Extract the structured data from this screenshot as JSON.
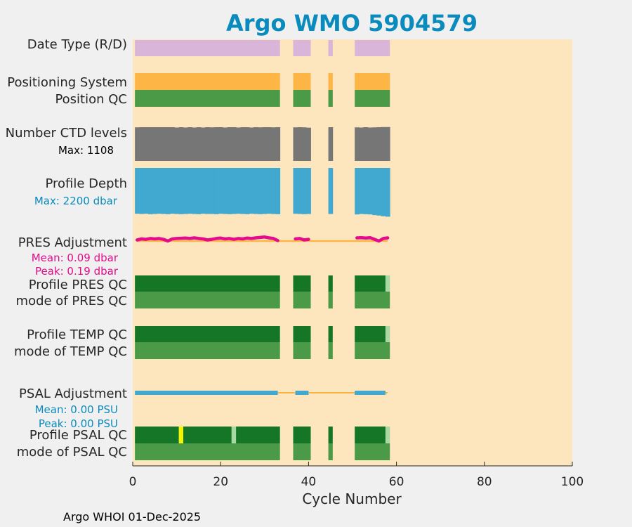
{
  "colors": {
    "page_bg": "#f0f0f0",
    "plot_bg": "#fde6bd",
    "title": "#0a8bbd",
    "date_type": "#d9b6d9",
    "positioning": "#fdb546",
    "qc_good": "#4a9a47",
    "qc_dark": "#167628",
    "qc_light": "#a8d9a2",
    "qc_yellow": "#f5f500",
    "ctd": "#767676",
    "depth": "#41a9d0",
    "pres_adj": "#e40c8c",
    "psal_adj": "#41a9d0",
    "baseline": "#fdb546",
    "ctd_label": "#000000",
    "depth_label": "#0a8bbd",
    "pres_label": "#e40c8c",
    "psal_label": "#0a8bbd"
  },
  "chart_data": {
    "type": "bar",
    "title": "Argo WMO 5904579",
    "xlabel": "Cycle Number",
    "xlim": [
      0,
      100
    ],
    "xticks": [
      0,
      20,
      40,
      60,
      80,
      100
    ],
    "rows": {
      "date_type": "Date Type (R/D)",
      "positioning": "Positioning System",
      "position_qc": "Position QC",
      "ctd_levels": "Number CTD levels",
      "profile_depth": "Profile Depth",
      "pres_adjustment": "PRES Adjustment",
      "profile_pres_qc": "Profile PRES QC",
      "mode_pres_qc": "mode of PRES QC",
      "profile_temp_qc": "Profile TEMP QC",
      "mode_temp_qc": "mode of TEMP QC",
      "psal_adjustment": "PSAL Adjustment",
      "profile_psal_qc": "Profile PSAL QC",
      "mode_psal_qc": "mode of PSAL QC"
    },
    "stats": {
      "ctd_max": "Max: 1108",
      "depth_max": "Max: 2200 dbar",
      "pres_mean": "Mean: 0.09 dbar",
      "pres_peak": "Peak: 0.19 dbar",
      "psal_mean": "Mean: 0.00 PSU",
      "psal_peak": "Peak: 0.00 PSU"
    },
    "cycle_segments": [
      [
        0.5,
        33.5
      ],
      [
        36.5,
        40.5
      ],
      [
        44.5,
        45.5
      ],
      [
        50.5,
        58.5
      ]
    ],
    "cycle_range": [
      0.5,
      58.5
    ],
    "ctd_levels": {
      "max": 1108,
      "values": [
        1080,
        1085,
        1085,
        1085,
        1085,
        1085,
        1085,
        1085,
        1085,
        1075,
        1085,
        1075,
        1085,
        1075,
        1085,
        1075,
        1085,
        1080,
        1085,
        1085,
        1075,
        1085,
        1085,
        1075,
        1085,
        1085,
        1075,
        1085,
        1080,
        1085,
        1085,
        1080,
        1085,
        1080,
        1085,
        1080,
        1070,
        1085,
        1080,
        1075,
        1085,
        1075,
        1080,
        1085,
        1090,
        1090,
        1095,
        1100,
        1108
      ]
    },
    "profile_depth": {
      "max": 2200,
      "values": [
        2020,
        2030,
        2020,
        2040,
        2030,
        2020,
        2030,
        2040,
        2020,
        2030,
        2040,
        2030,
        2020,
        2030,
        2040,
        2020,
        2030,
        2030,
        2040,
        2020,
        2030,
        2040,
        2030,
        2020,
        2030,
        2040,
        2020,
        2030,
        2040,
        2030,
        2020,
        2030,
        2040,
        2020,
        2030,
        2040,
        2030,
        2030,
        2050,
        2030,
        2040,
        2050,
        2080,
        2100,
        2130,
        2150,
        2200,
        2160,
        2170
      ]
    },
    "pres_adjustment": {
      "peak": 0.19,
      "segments": [
        {
          "x": [
            1,
            2,
            3,
            4,
            5,
            6,
            7,
            8,
            9,
            10,
            11,
            12,
            13,
            14,
            15,
            16,
            17,
            18,
            19,
            20,
            21,
            22,
            23,
            24,
            25,
            26,
            27,
            28,
            29,
            30,
            31,
            32,
            33
          ],
          "y": [
            0.05,
            0.1,
            0.08,
            0.12,
            0.1,
            0.12,
            0.08,
            0.0,
            0.1,
            0.12,
            0.13,
            0.14,
            0.12,
            0.15,
            0.12,
            0.1,
            0.05,
            0.08,
            0.12,
            0.14,
            0.1,
            0.12,
            0.08,
            0.12,
            0.1,
            0.14,
            0.12,
            0.15,
            0.17,
            0.19,
            0.15,
            0.12,
            0.02
          ]
        },
        {
          "x": [
            37,
            38,
            39,
            40
          ],
          "y": [
            0.1,
            0.12,
            0.05,
            0.08
          ]
        },
        {
          "x": [
            51,
            52,
            53,
            54,
            55,
            56,
            57,
            58
          ],
          "y": [
            0.15,
            0.16,
            0.14,
            0.16,
            0.08,
            0.0,
            0.12,
            0.15
          ]
        }
      ]
    },
    "psal_adjustment": {
      "bars": [
        [
          0.5,
          33
        ],
        [
          37,
          40
        ],
        [
          50.5,
          57.5
        ]
      ]
    },
    "qc_rows": {
      "profile_pres_qc": [
        [
          0.5,
          33.5,
          "qc_dark"
        ],
        [
          36.5,
          40.5,
          "qc_dark"
        ],
        [
          44.5,
          45.5,
          "qc_dark"
        ],
        [
          50.5,
          57.5,
          "qc_dark"
        ],
        [
          57.5,
          58.5,
          "qc_light"
        ]
      ],
      "profile_temp_qc": [
        [
          0.5,
          33.5,
          "qc_dark"
        ],
        [
          36.5,
          40.5,
          "qc_dark"
        ],
        [
          44.5,
          45.5,
          "qc_dark"
        ],
        [
          50.5,
          57.5,
          "qc_dark"
        ],
        [
          57.5,
          58.5,
          "qc_light"
        ]
      ],
      "profile_psal_qc": [
        [
          0.5,
          10.5,
          "qc_dark"
        ],
        [
          10.5,
          11.5,
          "qc_yellow"
        ],
        [
          11.5,
          22.5,
          "qc_dark"
        ],
        [
          22.5,
          23.5,
          "qc_light"
        ],
        [
          23.5,
          33.5,
          "qc_dark"
        ],
        [
          36.5,
          40.5,
          "qc_dark"
        ],
        [
          44.5,
          45.5,
          "qc_dark"
        ],
        [
          50.5,
          57.5,
          "qc_dark"
        ],
        [
          57.5,
          58.5,
          "qc_light"
        ]
      ]
    }
  },
  "footer": "Argo WHOI 01-Dec-2025"
}
